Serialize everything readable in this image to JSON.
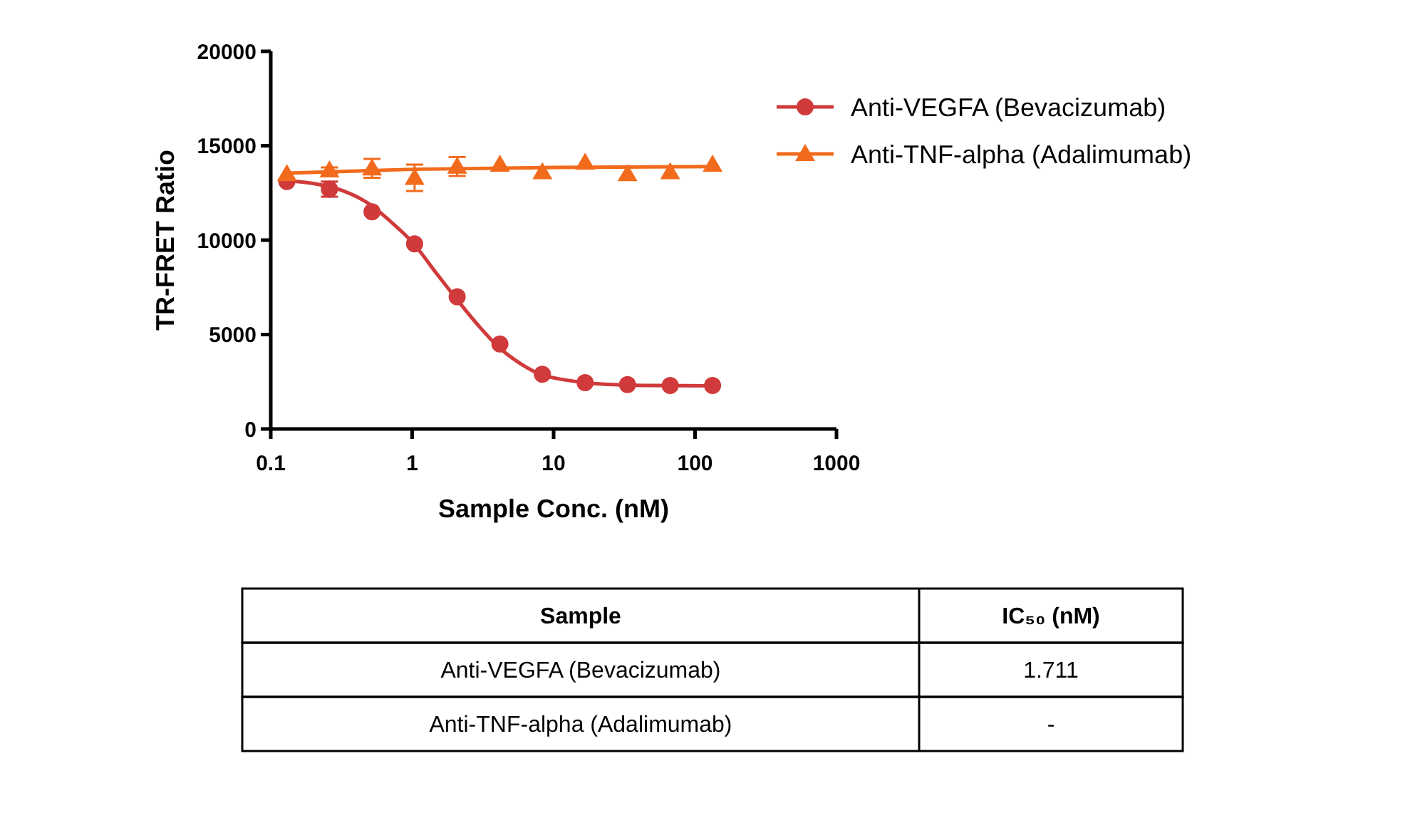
{
  "chart_data": {
    "type": "scatter",
    "xlabel": "Sample Conc. (nM)",
    "ylabel": "TR-FRET Ratio",
    "log": "x",
    "xlim": [
      0.1,
      1000
    ],
    "xticks": [
      0.1,
      1,
      10,
      100,
      1000
    ],
    "ylim": [
      0,
      20000
    ],
    "yticks": [
      0,
      5000,
      10000,
      15000,
      20000
    ],
    "grid": false,
    "legend": "right",
    "series": [
      {
        "name": "Anti-VEGFA (Bevacizumab)",
        "color": "#d03a3a",
        "marker": "circle",
        "x": [
          0.13,
          0.26,
          0.52,
          1.04,
          2.08,
          4.17,
          8.33,
          16.7,
          33.3,
          66.7,
          133
        ],
        "values": [
          13100,
          12700,
          11500,
          9800,
          7000,
          4500,
          2900,
          2450,
          2350,
          2300,
          2300
        ],
        "errors": [
          null,
          400,
          null,
          null,
          null,
          null,
          null,
          null,
          null,
          null,
          null
        ]
      },
      {
        "name": "Anti-TNF-alpha (Adalimumab)",
        "color": "#f26b1d",
        "marker": "triangle",
        "x": [
          0.13,
          0.26,
          0.52,
          1.04,
          2.08,
          4.17,
          8.33,
          16.7,
          33.3,
          66.7,
          133
        ],
        "values": [
          13500,
          13700,
          13800,
          13300,
          13900,
          14000,
          13600,
          14100,
          13500,
          13600,
          14000
        ],
        "errors": [
          null,
          150,
          500,
          700,
          500,
          null,
          null,
          null,
          null,
          null,
          null
        ]
      },
      {
        "color": "#d03a3a",
        "type": "line",
        "x": [
          0.13,
          0.2,
          0.3,
          0.5,
          0.7,
          1,
          1.5,
          2,
          3,
          4,
          6,
          8,
          12,
          20,
          50,
          133
        ],
        "values": [
          13150,
          13000,
          12700,
          11900,
          11000,
          9900,
          8200,
          7000,
          5400,
          4400,
          3400,
          2900,
          2600,
          2400,
          2300,
          2280
        ]
      },
      {
        "color": "#f26b1d",
        "type": "line",
        "x": [
          0.13,
          1,
          10,
          133
        ],
        "values": [
          13550,
          13750,
          13850,
          13900
        ]
      }
    ],
    "annotations": [
      "Sample",
      "IC₅₀ (nM)",
      "Anti-VEGFA (Bevacizumab)",
      "1.711",
      "Anti-TNF-alpha (Adalimumab)",
      "-"
    ]
  }
}
